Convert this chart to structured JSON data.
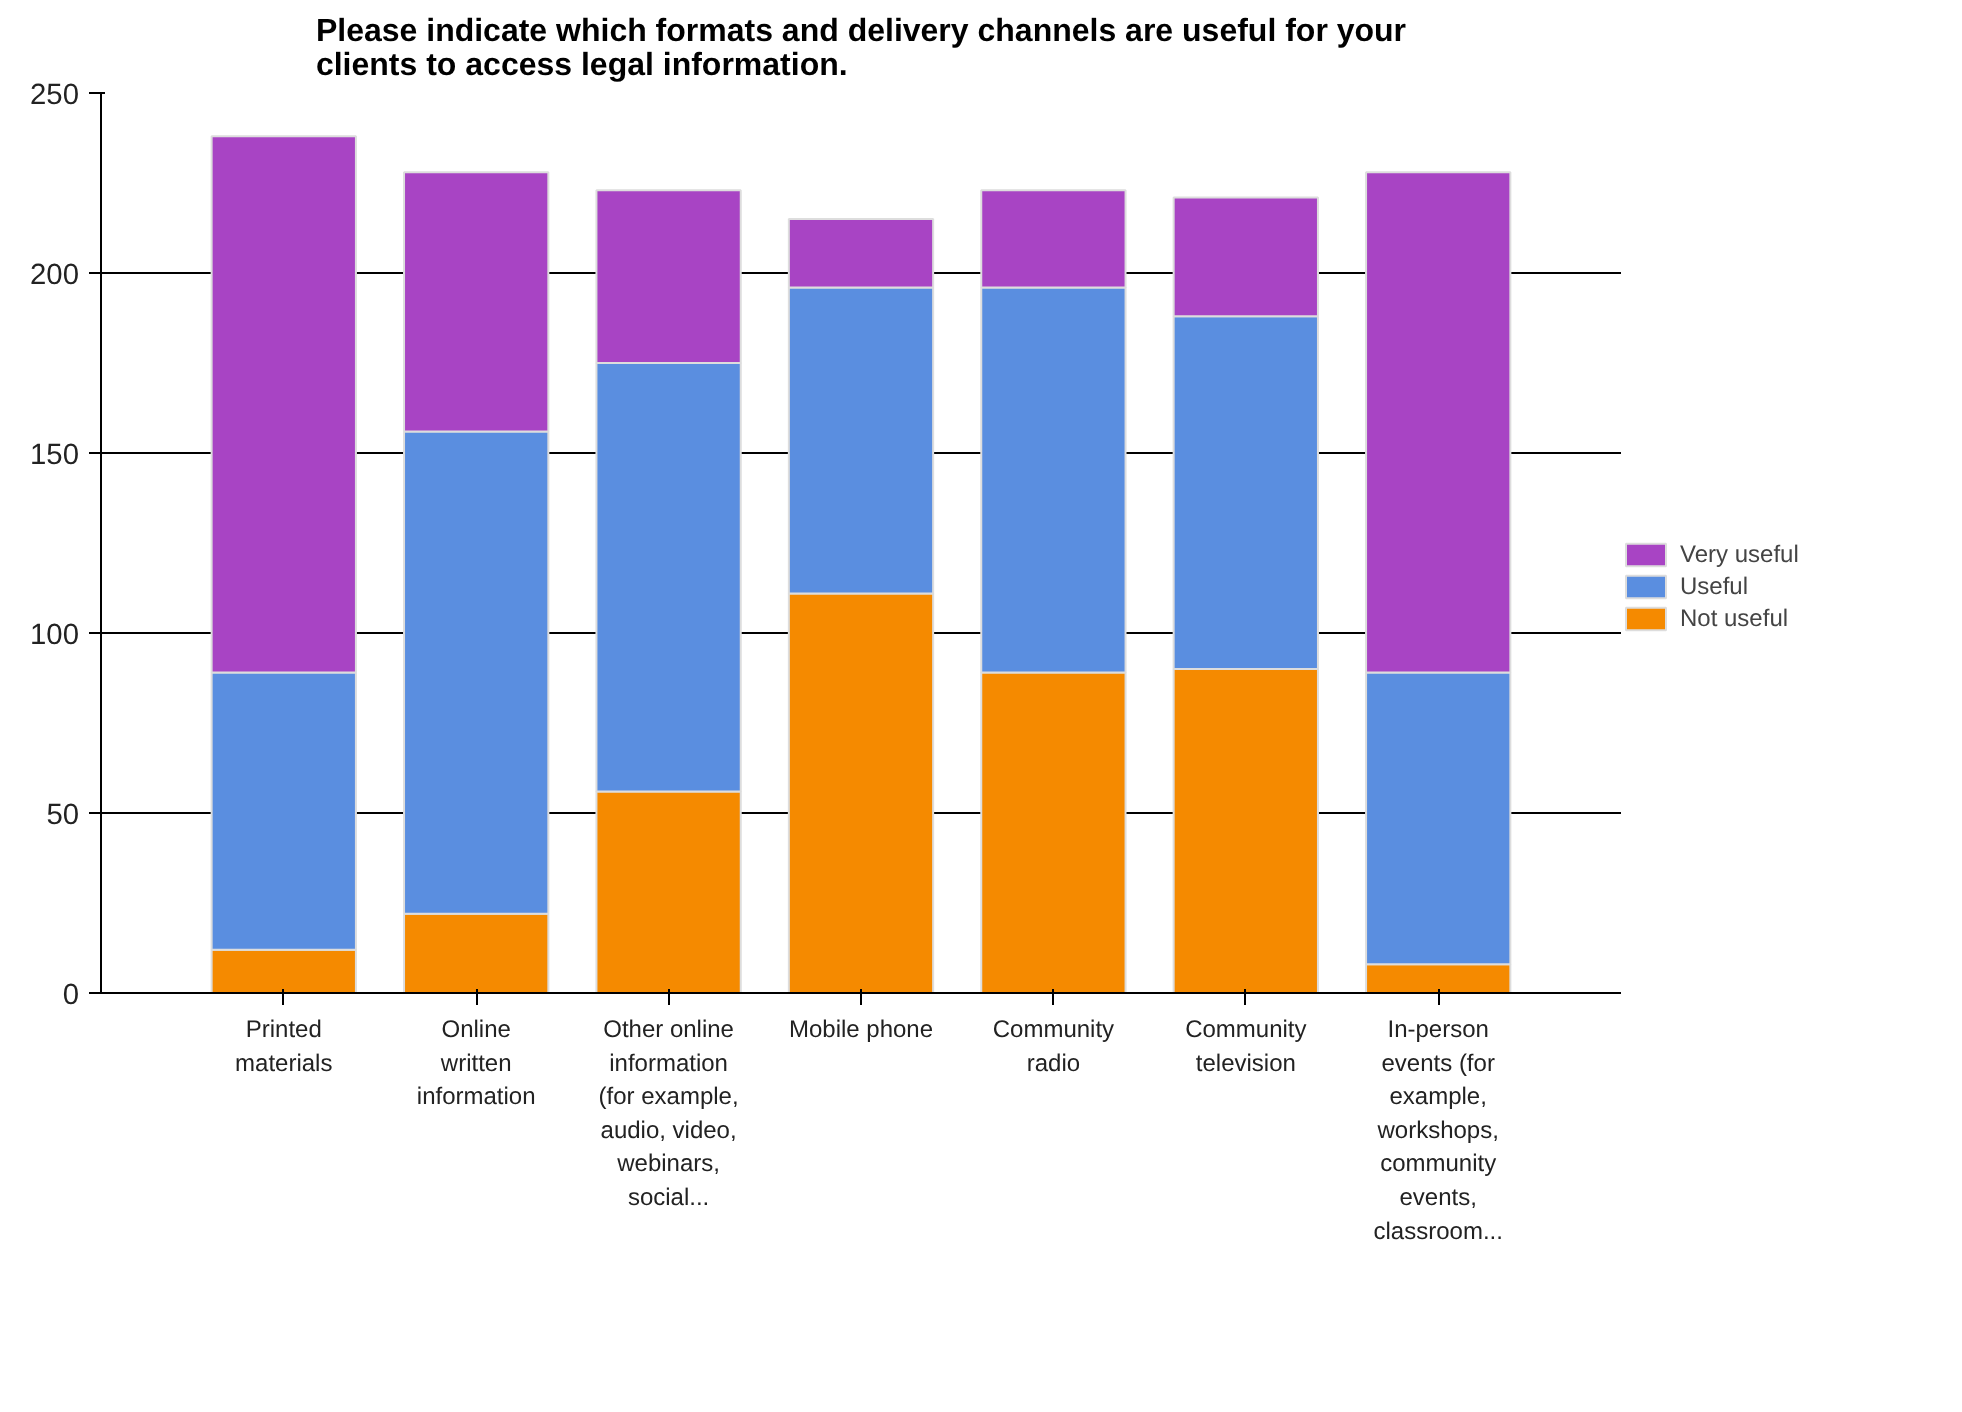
{
  "chart_data": {
    "type": "bar",
    "stacked": true,
    "title": "Please indicate which formats and delivery channels are useful for your clients to access legal information.",
    "categories": [
      "Printed materials",
      "Online written information",
      "Other online information (for example, audio, video, webinars, social...",
      "Mobile phone",
      "Community radio",
      "Community television",
      "In-person events (for example, workshops, community events, classroom..."
    ],
    "series": [
      {
        "name": "Not useful",
        "color": "#f58a00",
        "values": [
          12,
          22,
          56,
          111,
          89,
          90,
          8
        ]
      },
      {
        "name": "Useful",
        "color": "#5a8ee0",
        "values": [
          77,
          134,
          119,
          85,
          107,
          98,
          81
        ]
      },
      {
        "name": "Very useful",
        "color": "#a844c4",
        "values": [
          149,
          72,
          48,
          19,
          27,
          33,
          139
        ]
      }
    ],
    "ylim": [
      0,
      250
    ],
    "yticks": [
      0,
      50,
      100,
      150,
      200,
      250
    ],
    "grid": "y",
    "legend": "right"
  }
}
